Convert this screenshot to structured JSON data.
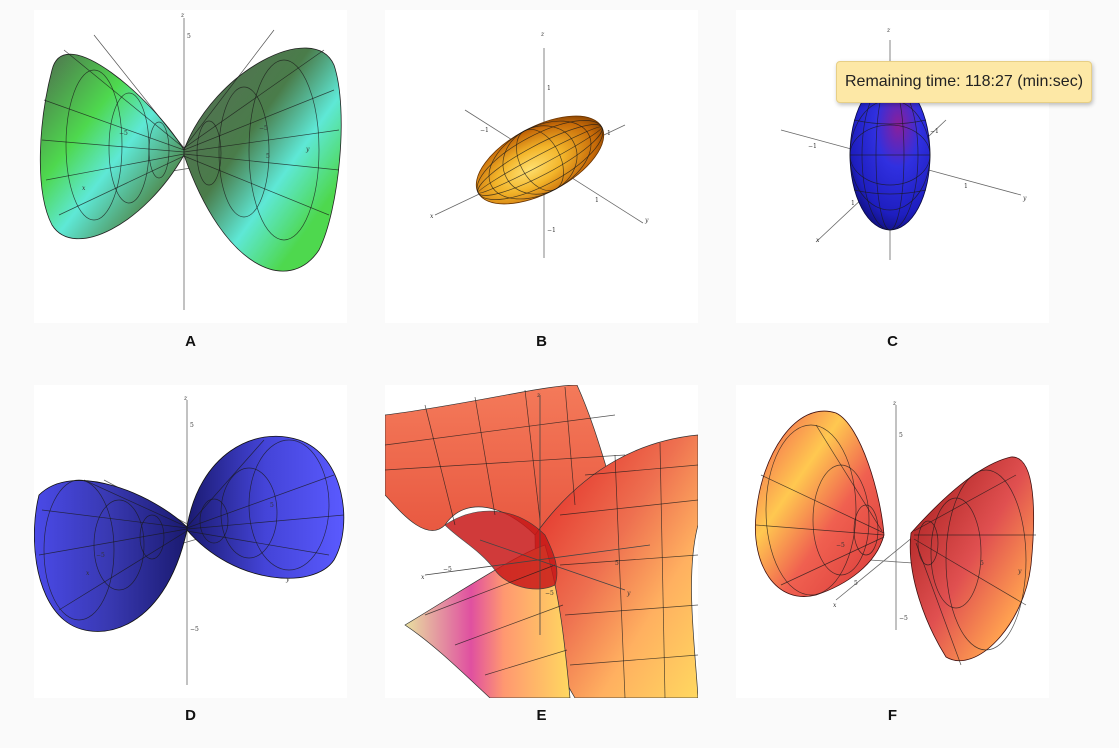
{
  "options": [
    {
      "id": "A",
      "label": "A",
      "surface": "elliptic-cone-horizontal",
      "colors": [
        "#4bd84b",
        "#5ee8d6",
        "#4f6a4f"
      ]
    },
    {
      "id": "B",
      "label": "B",
      "surface": "ellipsoid-tilted",
      "colors": [
        "#e3a21c",
        "#ffd54a",
        "#8a4a00"
      ]
    },
    {
      "id": "C",
      "label": "C",
      "surface": "ellipsoid-vertical",
      "colors": [
        "#2b2bd6",
        "#7a1fa0",
        "#0a0a60"
      ]
    },
    {
      "id": "D",
      "label": "D",
      "surface": "elliptic-cone-horizontal",
      "colors": [
        "#4a4ae8",
        "#5a5aff",
        "#1a1a80"
      ]
    },
    {
      "id": "E",
      "label": "E",
      "surface": "hyperbolic-paraboloid",
      "colors": [
        "#f47a5a",
        "#e02020",
        "#ffd860"
      ]
    },
    {
      "id": "F",
      "label": "F",
      "surface": "hyperboloid-two-sheets",
      "colors": [
        "#f05050",
        "#ffc850",
        "#a01818"
      ]
    }
  ],
  "axis_labels": {
    "x": "x",
    "y": "y",
    "z": "z"
  },
  "tick_values": {
    "one": "1",
    "neg_one": "−1",
    "five": "5",
    "neg_five": "−5"
  },
  "tooltip": {
    "text": "Remaining time: 118:27 (min:sec)"
  }
}
